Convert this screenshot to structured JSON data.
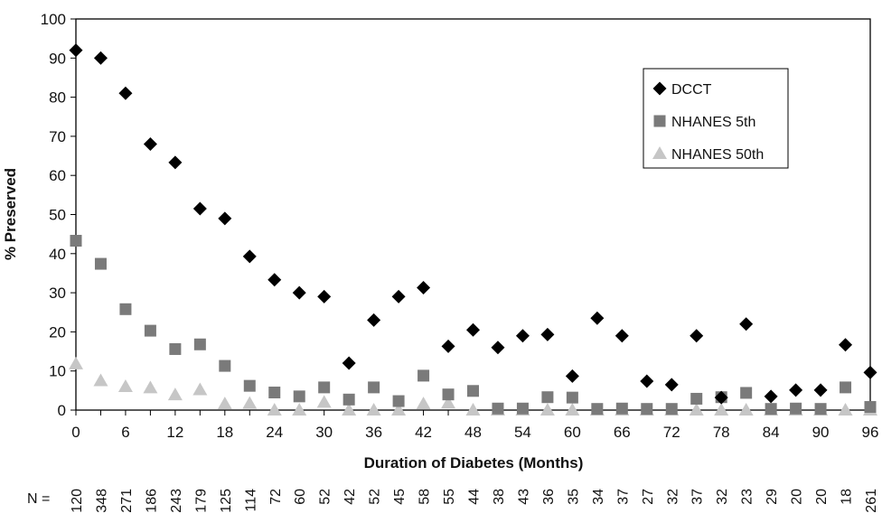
{
  "chart_data": {
    "type": "scatter",
    "xlabel": "Duration of Diabetes (Months)",
    "ylabel": "% Preserved",
    "xlim": [
      0,
      96
    ],
    "ylim": [
      0,
      100
    ],
    "xticks": [
      0,
      6,
      12,
      18,
      24,
      30,
      36,
      42,
      48,
      54,
      60,
      66,
      72,
      78,
      84,
      90,
      96
    ],
    "yticks": [
      0,
      10,
      20,
      30,
      40,
      50,
      60,
      70,
      80,
      90,
      100
    ],
    "grid": false,
    "legend_position": "top-right",
    "x": [
      0,
      3,
      6,
      9,
      12,
      15,
      18,
      21,
      24,
      27,
      30,
      33,
      36,
      39,
      42,
      45,
      48,
      51,
      54,
      57,
      60,
      63,
      66,
      69,
      72,
      75,
      78,
      81,
      84,
      87,
      90,
      93,
      96
    ],
    "series": [
      {
        "name": "DCCT",
        "marker": "diamond",
        "color": "#000000",
        "values": [
          92,
          90,
          81,
          68,
          63.3,
          51.5,
          49,
          39.3,
          33.3,
          30,
          29,
          12,
          23,
          29,
          31.3,
          16.3,
          20.5,
          16,
          19,
          19.3,
          8.7,
          23.5,
          19,
          7.4,
          6.5,
          19,
          3.2,
          22,
          3.5,
          5.1,
          5.1,
          16.7,
          9.6
        ]
      },
      {
        "name": "NHANES 5th",
        "marker": "square",
        "color": "#7a7a7a",
        "values": [
          43.3,
          37.4,
          25.8,
          20.3,
          15.6,
          16.8,
          11.3,
          6.2,
          4.5,
          3.5,
          5.8,
          2.7,
          5.8,
          2.3,
          8.8,
          4,
          4.9,
          0.4,
          0.4,
          3.3,
          3.2,
          0.3,
          0.4,
          0.3,
          0.3,
          2.9,
          3.3,
          4.4,
          0.3,
          0.4,
          0.3,
          5.8,
          0.8
        ]
      },
      {
        "name": "NHANES 50th",
        "marker": "triangle",
        "color": "#c6c6c6",
        "values": [
          11.8,
          7.5,
          6,
          5.7,
          3.9,
          5.2,
          1.6,
          1.7,
          0,
          0,
          2,
          0,
          0,
          0,
          1.6,
          1.8,
          0,
          0,
          0,
          0,
          0,
          0,
          0,
          0,
          0,
          0,
          0,
          0,
          0,
          0,
          0,
          0,
          0
        ]
      }
    ],
    "n_label": "N =",
    "n_values": [
      "120",
      "348",
      "271",
      "186",
      "243",
      "179",
      "125",
      "114",
      "72",
      "60",
      "52",
      "42",
      "52",
      "45",
      "58",
      "55",
      "44",
      "38",
      "43",
      "36",
      "35",
      "34",
      "37",
      "27",
      "32",
      "37",
      "32",
      "23",
      "29",
      "20",
      "20",
      "18",
      "261"
    ]
  }
}
